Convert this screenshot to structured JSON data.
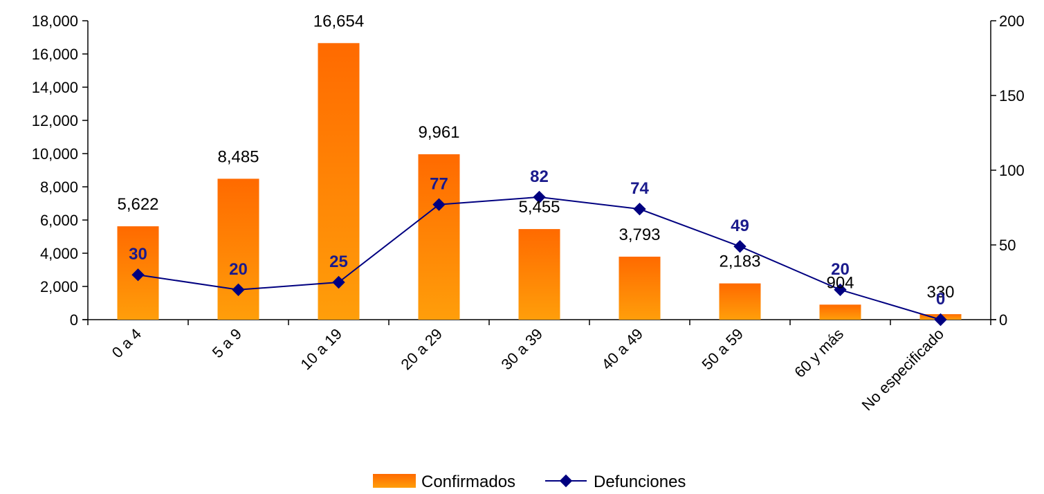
{
  "chart_data": {
    "type": "bar",
    "categories": [
      "0 a 4",
      "5 a 9",
      "10 a 19",
      "20 a 29",
      "30 a 39",
      "40 a 49",
      "50 a 59",
      "60 y más",
      "No especificado"
    ],
    "series": [
      {
        "name": "Confirmados",
        "type": "bar",
        "axis": "left",
        "values": [
          5622,
          8485,
          16654,
          9961,
          5455,
          3793,
          2183,
          904,
          330
        ],
        "labels": [
          "5,622",
          "8,485",
          "16,654",
          "9,961",
          "5,455",
          "3,793",
          "2,183",
          "904",
          "330"
        ]
      },
      {
        "name": "Defunciones",
        "type": "line",
        "axis": "right",
        "values": [
          30,
          20,
          25,
          77,
          82,
          74,
          49,
          20,
          0
        ],
        "labels": [
          "30",
          "20",
          "25",
          "77",
          "82",
          "74",
          "49",
          "20",
          "0"
        ]
      }
    ],
    "y_left": {
      "lim": [
        0,
        18000
      ],
      "ticks": [
        0,
        2000,
        4000,
        6000,
        8000,
        10000,
        12000,
        14000,
        16000,
        18000
      ],
      "tick_labels": [
        "0",
        "2,000",
        "4,000",
        "6,000",
        "8,000",
        "10,000",
        "12,000",
        "14,000",
        "16,000",
        "18,000"
      ]
    },
    "y_right": {
      "lim": [
        0,
        200
      ],
      "ticks": [
        0,
        50,
        100,
        150,
        200
      ],
      "tick_labels": [
        "0",
        "50",
        "100",
        "150",
        "200"
      ]
    },
    "grid": false,
    "legend": "bottom",
    "colors": {
      "bar_top": "#ff6a00",
      "bar_bottom": "#ff9e0a",
      "line": "#000080",
      "line_label": "#1a1a8c"
    }
  }
}
